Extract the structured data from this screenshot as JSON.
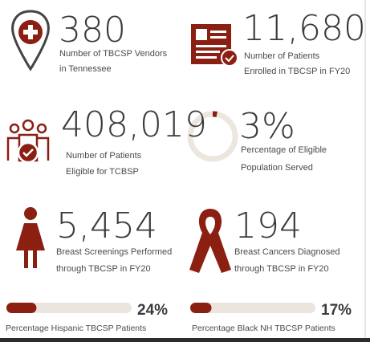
{
  "stats": [
    {
      "value": "380",
      "label": [
        "Number of TBCSP Vendors",
        "in Tennessee"
      ]
    },
    {
      "value": "11,680",
      "label": [
        "Number of Patients",
        "Enrolled in TBCSP in FY20"
      ]
    },
    {
      "value": "408,019",
      "label": [
        "Number of Patients",
        "Eligible for TCBSP"
      ]
    },
    {
      "value": "5,454",
      "label": [
        "Breast Screenings Performed",
        "through TBCSP in FY20"
      ]
    },
    {
      "value": "194",
      "label": [
        "Breast Cancers Diagnosed",
        "through TBCSP in FY20"
      ]
    }
  ],
  "ring": {
    "value": 3,
    "value_label": "3%",
    "label": [
      "Percentage of  Eligible",
      "Population Served"
    ]
  },
  "progress": [
    {
      "value": 24,
      "value_label": "24%",
      "label": "Percentage Hispanic TBCSP Patients"
    },
    {
      "value": 17,
      "value_label": "17%",
      "label": "Percentage Black NH TBCSP Patients"
    }
  ]
}
